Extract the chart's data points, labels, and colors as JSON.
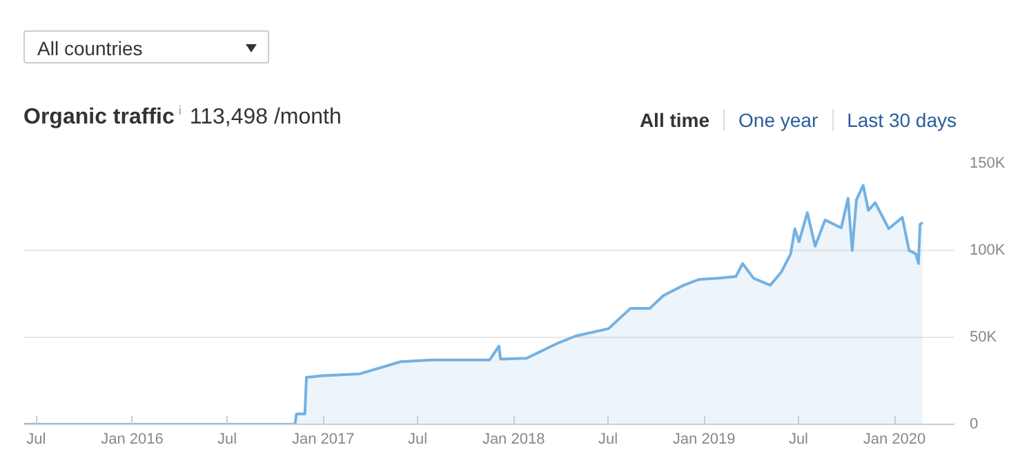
{
  "chart_data": {
    "type": "area",
    "title": "Organic traffic",
    "subtitle": "113,498 /month",
    "annotations": [
      "All countries",
      "i",
      "All time",
      "One year",
      "Last 30 days"
    ],
    "x": [
      "2015-06-08",
      "2016-11-08",
      "2016-11-11",
      "2016-11-27",
      "2016-11-30",
      "2017-01-01",
      "2017-03-12",
      "2017-05-30",
      "2017-07-29",
      "2017-11-16",
      "2017-12-04",
      "2017-12-07",
      "2018-01-26",
      "2018-03-27",
      "2018-04-30",
      "2018-07-02",
      "2018-08-13",
      "2018-09-19",
      "2018-10-15",
      "2018-11-23",
      "2018-12-22",
      "2019-01-28",
      "2019-03-03",
      "2019-03-16",
      "2019-04-06",
      "2019-05-08",
      "2019-05-29",
      "2019-06-16",
      "2019-06-24",
      "2019-07-02",
      "2019-07-18",
      "2019-08-02",
      "2019-08-21",
      "2019-09-21",
      "2019-10-04",
      "2019-10-12",
      "2019-10-20",
      "2019-11-02",
      "2019-11-12",
      "2019-11-25",
      "2019-12-21",
      "2020-01-16",
      "2020-01-29",
      "2020-02-11",
      "2020-02-16",
      "2020-02-19",
      "2020-02-24"
    ],
    "series": [
      {
        "color": "#74b1e2",
        "values": [
          0,
          0,
          6000,
          6000,
          27000,
          28000,
          29000,
          36000,
          37000,
          37000,
          45000,
          37500,
          38000,
          46700,
          50800,
          55000,
          66700,
          66700,
          74000,
          80000,
          83300,
          84000,
          85000,
          92500,
          84000,
          80000,
          87500,
          98000,
          112500,
          105000,
          121700,
          102500,
          117500,
          113000,
          130000,
          100000,
          129000,
          137500,
          123000,
          127500,
          112500,
          119000,
          100000,
          98000,
          92500,
          115000,
          116000
        ]
      }
    ],
    "xlim": [
      "2015-06-08",
      "2020-04-25"
    ],
    "xticks": [
      {
        "value": "2015-07-01",
        "label": "Jul"
      },
      {
        "value": "2016-01-01",
        "label": "Jan 2016"
      },
      {
        "value": "2016-07-01",
        "label": "Jul"
      },
      {
        "value": "2017-01-01",
        "label": "Jan 2017"
      },
      {
        "value": "2017-07-01",
        "label": "Jul"
      },
      {
        "value": "2018-01-01",
        "label": "Jan 2018"
      },
      {
        "value": "2018-07-01",
        "label": "Jul"
      },
      {
        "value": "2019-01-01",
        "label": "Jan 2019"
      },
      {
        "value": "2019-07-01",
        "label": "Jul"
      },
      {
        "value": "2020-01-01",
        "label": "Jan 2020"
      }
    ],
    "ylim": [
      0,
      150000
    ],
    "yticks": [
      0,
      {
        "value": 50000,
        "label": "50K"
      },
      {
        "value": 100000,
        "label": "100K"
      },
      {
        "value": 150000,
        "label": "150K"
      }
    ],
    "grid": "y"
  }
}
